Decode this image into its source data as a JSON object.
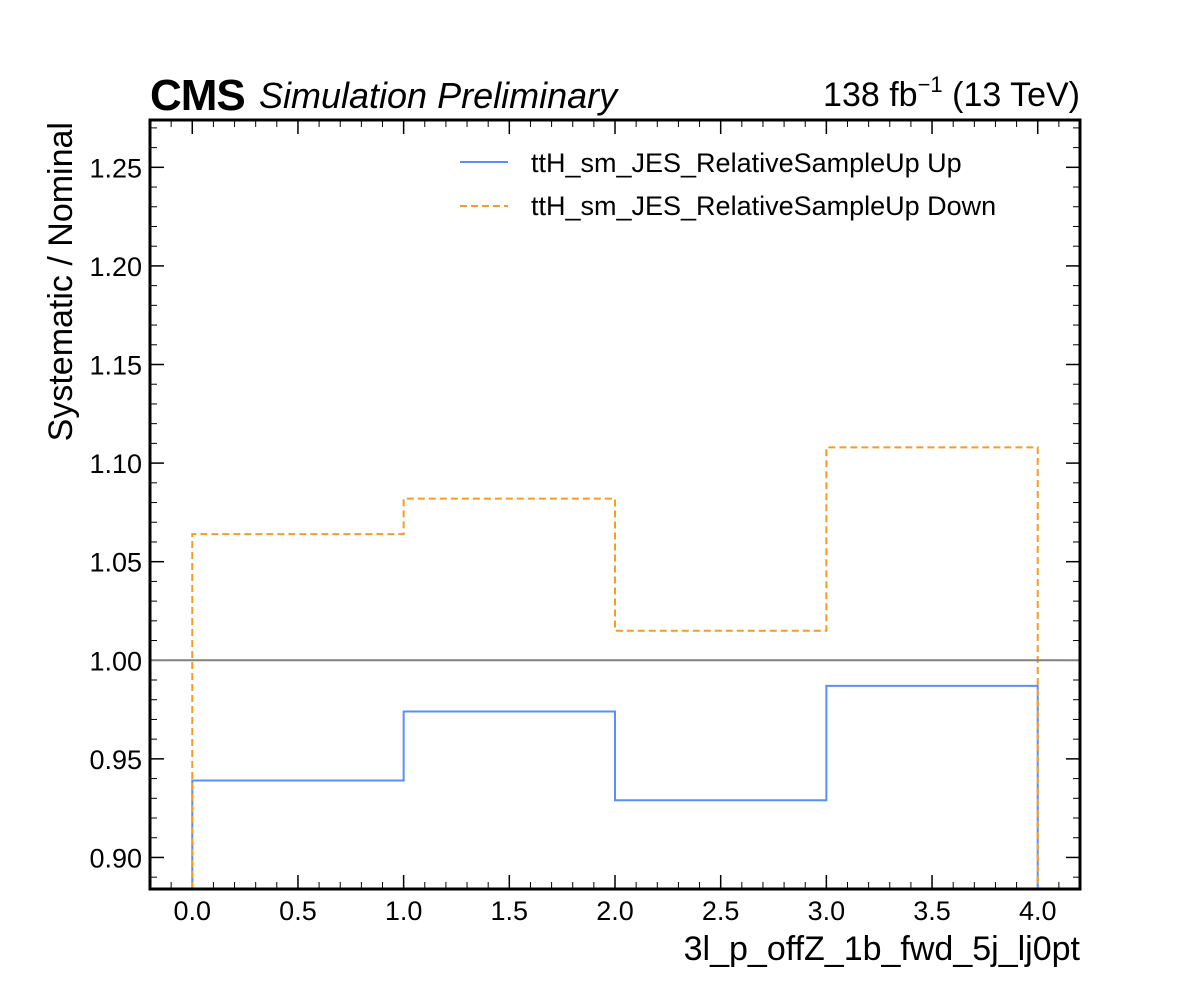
{
  "header": {
    "experiment": "CMS",
    "extra_text": "Simulation Preliminary",
    "lumi_value": "138 fb",
    "lumi_exponent": "−1",
    "lumi_energy": " (13 TeV)"
  },
  "colors": {
    "up": "#5790fc",
    "down": "#f89c20",
    "reference_line": "#808080",
    "axes": "#000000"
  },
  "chart_data": {
    "type": "line",
    "drawstyle": "steps",
    "xlabel": "3l_p_offZ_1b_fwd_5j_lj0pt",
    "ylabel": "Systematic / Nominal",
    "xlim": [
      -0.2,
      4.2
    ],
    "ylim": [
      0.884,
      1.274
    ],
    "x_ticks": [
      "0.0",
      "0.5",
      "1.0",
      "1.5",
      "2.0",
      "2.5",
      "3.0",
      "3.5",
      "4.0"
    ],
    "y_ticks": [
      "0.90",
      "0.95",
      "1.00",
      "1.05",
      "1.10",
      "1.15",
      "1.20",
      "1.25"
    ],
    "bin_edges": [
      0,
      1,
      2,
      3,
      4
    ],
    "reference_line": 1.0,
    "grid": false,
    "legend_position": "top-right",
    "series": [
      {
        "name": "ttH_sm_JES_RelativeSampleUp Up",
        "values": [
          0.939,
          0.974,
          0.929,
          0.987
        ],
        "style": "solid"
      },
      {
        "name": "ttH_sm_JES_RelativeSampleUp Down",
        "values": [
          1.064,
          1.082,
          1.015,
          1.108
        ],
        "style": "dashed"
      }
    ]
  }
}
